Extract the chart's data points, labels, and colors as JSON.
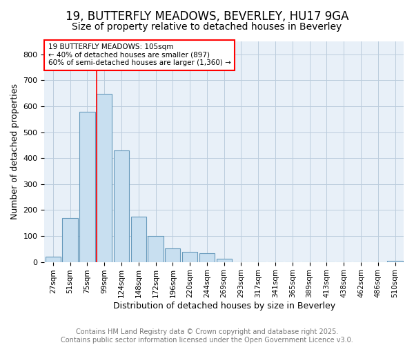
{
  "title1": "19, BUTTERFLY MEADOWS, BEVERLEY, HU17 9GA",
  "title2": "Size of property relative to detached houses in Beverley",
  "xlabel": "Distribution of detached houses by size in Beverley",
  "ylabel": "Number of detached properties",
  "categories": [
    "27sqm",
    "51sqm",
    "75sqm",
    "99sqm",
    "124sqm",
    "148sqm",
    "172sqm",
    "196sqm",
    "220sqm",
    "244sqm",
    "269sqm",
    "293sqm",
    "317sqm",
    "341sqm",
    "365sqm",
    "389sqm",
    "413sqm",
    "438sqm",
    "462sqm",
    "486sqm",
    "510sqm"
  ],
  "values": [
    20,
    170,
    580,
    648,
    430,
    175,
    100,
    52,
    40,
    33,
    12,
    0,
    0,
    0,
    0,
    0,
    0,
    0,
    0,
    0,
    5
  ],
  "bar_color": "#c8dff0",
  "bar_edgecolor": "#6699bb",
  "bar_linewidth": 0.8,
  "vline_x_index": 3,
  "vline_color": "red",
  "vline_linewidth": 1.2,
  "annotation_text": "19 BUTTERFLY MEADOWS: 105sqm\n← 40% of detached houses are smaller (897)\n60% of semi-detached houses are larger (1,360) →",
  "annotation_fontsize": 7.5,
  "annotation_box_color": "white",
  "annotation_box_edgecolor": "red",
  "ylim": [
    0,
    850
  ],
  "yticks": [
    0,
    100,
    200,
    300,
    400,
    500,
    600,
    700,
    800
  ],
  "grid_color": "#bbccdd",
  "plot_bg_color": "#e8f0f8",
  "fig_bg_color": "#ffffff",
  "footer_text": "Contains HM Land Registry data © Crown copyright and database right 2025.\nContains public sector information licensed under the Open Government Licence v3.0.",
  "footer_fontsize": 7,
  "title1_fontsize": 12,
  "title2_fontsize": 10,
  "xlabel_fontsize": 9,
  "ylabel_fontsize": 9,
  "tick_fontsize": 7.5
}
